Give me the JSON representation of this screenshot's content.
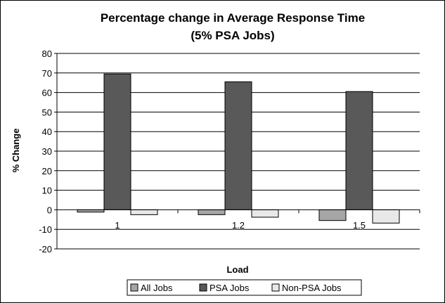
{
  "chart_data": {
    "type": "bar",
    "title": "Percentage  change in Average Response Time",
    "subtitle": "(5% PSA Jobs)",
    "xlabel": "Load",
    "ylabel": "% Change",
    "categories": [
      "1",
      "1.2",
      "1.5"
    ],
    "ylim": [
      -20,
      80
    ],
    "yticks": [
      -20,
      -10,
      0,
      10,
      20,
      30,
      40,
      50,
      60,
      70,
      80
    ],
    "grid": true,
    "legend_position": "bottom",
    "series": [
      {
        "name": "All Jobs",
        "values": [
          -1.2,
          -2.5,
          -5.5
        ],
        "color": "#a6a6a6"
      },
      {
        "name": "PSA Jobs",
        "values": [
          69.5,
          65.5,
          60.5
        ],
        "color": "#595959"
      },
      {
        "name": "Non-PSA Jobs",
        "values": [
          -2.5,
          -3.8,
          -6.8
        ],
        "color": "#e8e8e8"
      }
    ]
  }
}
